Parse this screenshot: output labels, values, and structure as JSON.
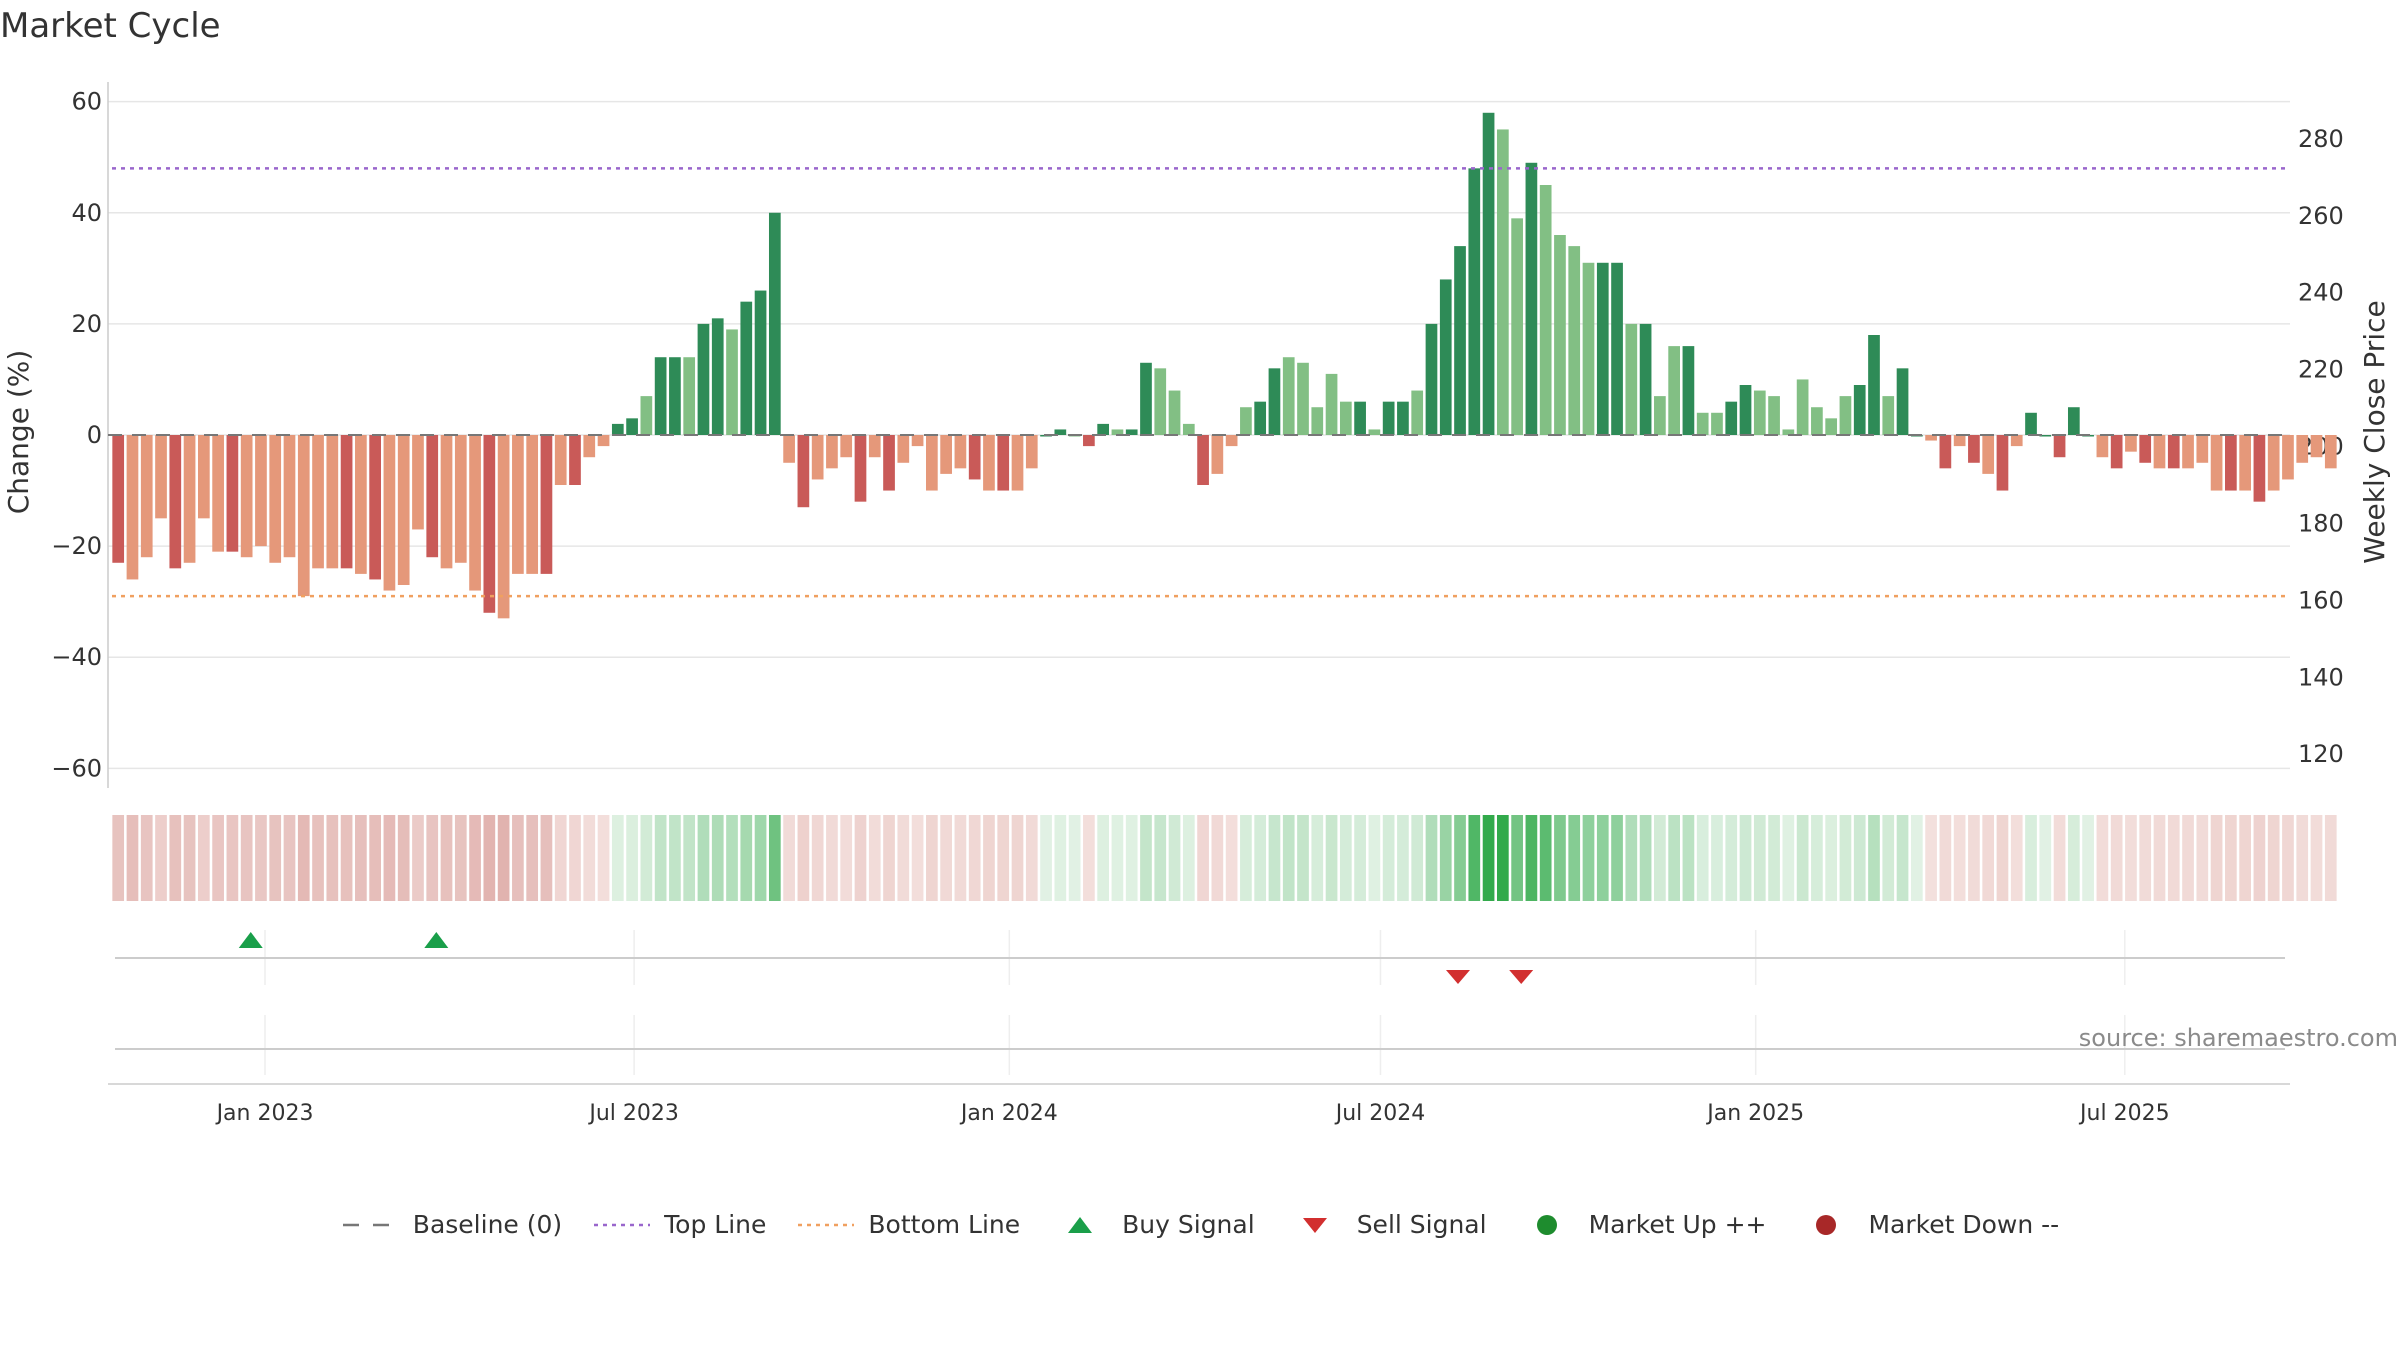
{
  "title": "Market Cycle",
  "source": "source: sharemaestro.com",
  "colors": {
    "strong_up": "#2e8b57",
    "weak_up": "#82bf84",
    "strong_down": "#c95a58",
    "weak_down": "#e5987a",
    "top_line": "#9966cc",
    "bottom_line": "#f0a060",
    "baseline": "#777777",
    "buy": "#1a9f4a",
    "sell": "#d22f2f",
    "market_up": "#1e8c2e",
    "market_down": "#a82828"
  },
  "chart_data": {
    "type": "bar",
    "x_start": "2022-10-21",
    "week_step_days": 7,
    "values": [
      -23,
      -26,
      -22,
      -15,
      -24,
      -23,
      -15,
      -21,
      -21,
      -22,
      -20,
      -23,
      -22,
      -29,
      -24,
      -24,
      -24,
      -25,
      -26,
      -28,
      -27,
      -17,
      -22,
      -24,
      -23,
      -28,
      -32,
      -33,
      -25,
      -25,
      -25,
      -9,
      -9,
      -4,
      -2,
      2,
      3,
      7,
      14,
      14,
      14,
      20,
      21,
      19,
      24,
      26,
      40,
      -5,
      -13,
      -8,
      -6,
      -4,
      -12,
      -4,
      -10,
      -5,
      -2,
      -10,
      -7,
      -6,
      -8,
      -10,
      -10,
      -10,
      -6,
      0,
      1,
      0,
      -2,
      2,
      1,
      1,
      13,
      12,
      8,
      2,
      -9,
      -7,
      -2,
      5,
      6,
      12,
      14,
      13,
      5,
      11,
      6,
      6,
      1,
      6,
      6,
      8,
      20,
      28,
      34,
      48,
      58,
      55,
      39,
      49,
      45,
      36,
      34,
      31,
      31,
      31,
      20,
      20,
      7,
      16,
      16,
      4,
      4,
      6,
      9,
      8,
      7,
      1,
      10,
      5,
      3,
      7,
      9,
      18,
      7,
      12,
      0,
      -1,
      -6,
      -2,
      -5,
      -7,
      -10,
      -2,
      4,
      0,
      -4,
      5,
      0,
      -4,
      -6,
      -3,
      -5,
      -6,
      -6,
      -6,
      -5,
      -10,
      -10,
      -10,
      -12,
      -10,
      -8,
      -5,
      -4,
      -6
    ],
    "ylabel": "Change (%)",
    "ylim": [
      -63,
      63
    ],
    "yticks": [
      -60,
      -40,
      -20,
      0,
      20,
      40,
      60
    ],
    "y2label": "Weekly Close Price",
    "y2lim": [
      112,
      294
    ],
    "y2ticks": [
      120,
      140,
      160,
      180,
      200,
      220,
      240,
      260,
      280
    ],
    "top_line": 48,
    "bottom_line": -29,
    "xticks": [
      {
        "date": "2023-01-01",
        "label": "Jan 2023"
      },
      {
        "date": "2023-07-01",
        "label": "Jul 2023"
      },
      {
        "date": "2024-01-01",
        "label": "Jan 2024"
      },
      {
        "date": "2024-07-01",
        "label": "Jul 2024"
      },
      {
        "date": "2025-01-01",
        "label": "Jan 2025"
      },
      {
        "date": "2025-07-01",
        "label": "Jul 2025"
      }
    ],
    "buy_signals": [
      "2022-12-25",
      "2023-03-26"
    ],
    "sell_signals": [
      "2024-08-08",
      "2024-09-08"
    ],
    "grid": true,
    "legend": {
      "position": "bottom",
      "entries": [
        {
          "label": "Baseline (0)",
          "kind": "dash"
        },
        {
          "label": "Top Line",
          "kind": "dot-purple"
        },
        {
          "label": "Bottom Line",
          "kind": "dot-orange"
        },
        {
          "label": "Buy Signal",
          "kind": "tri-up"
        },
        {
          "label": "Sell Signal",
          "kind": "tri-down"
        },
        {
          "label": "Market Up ++",
          "kind": "circle-green"
        },
        {
          "label": "Market Down --",
          "kind": "circle-red"
        }
      ]
    }
  }
}
